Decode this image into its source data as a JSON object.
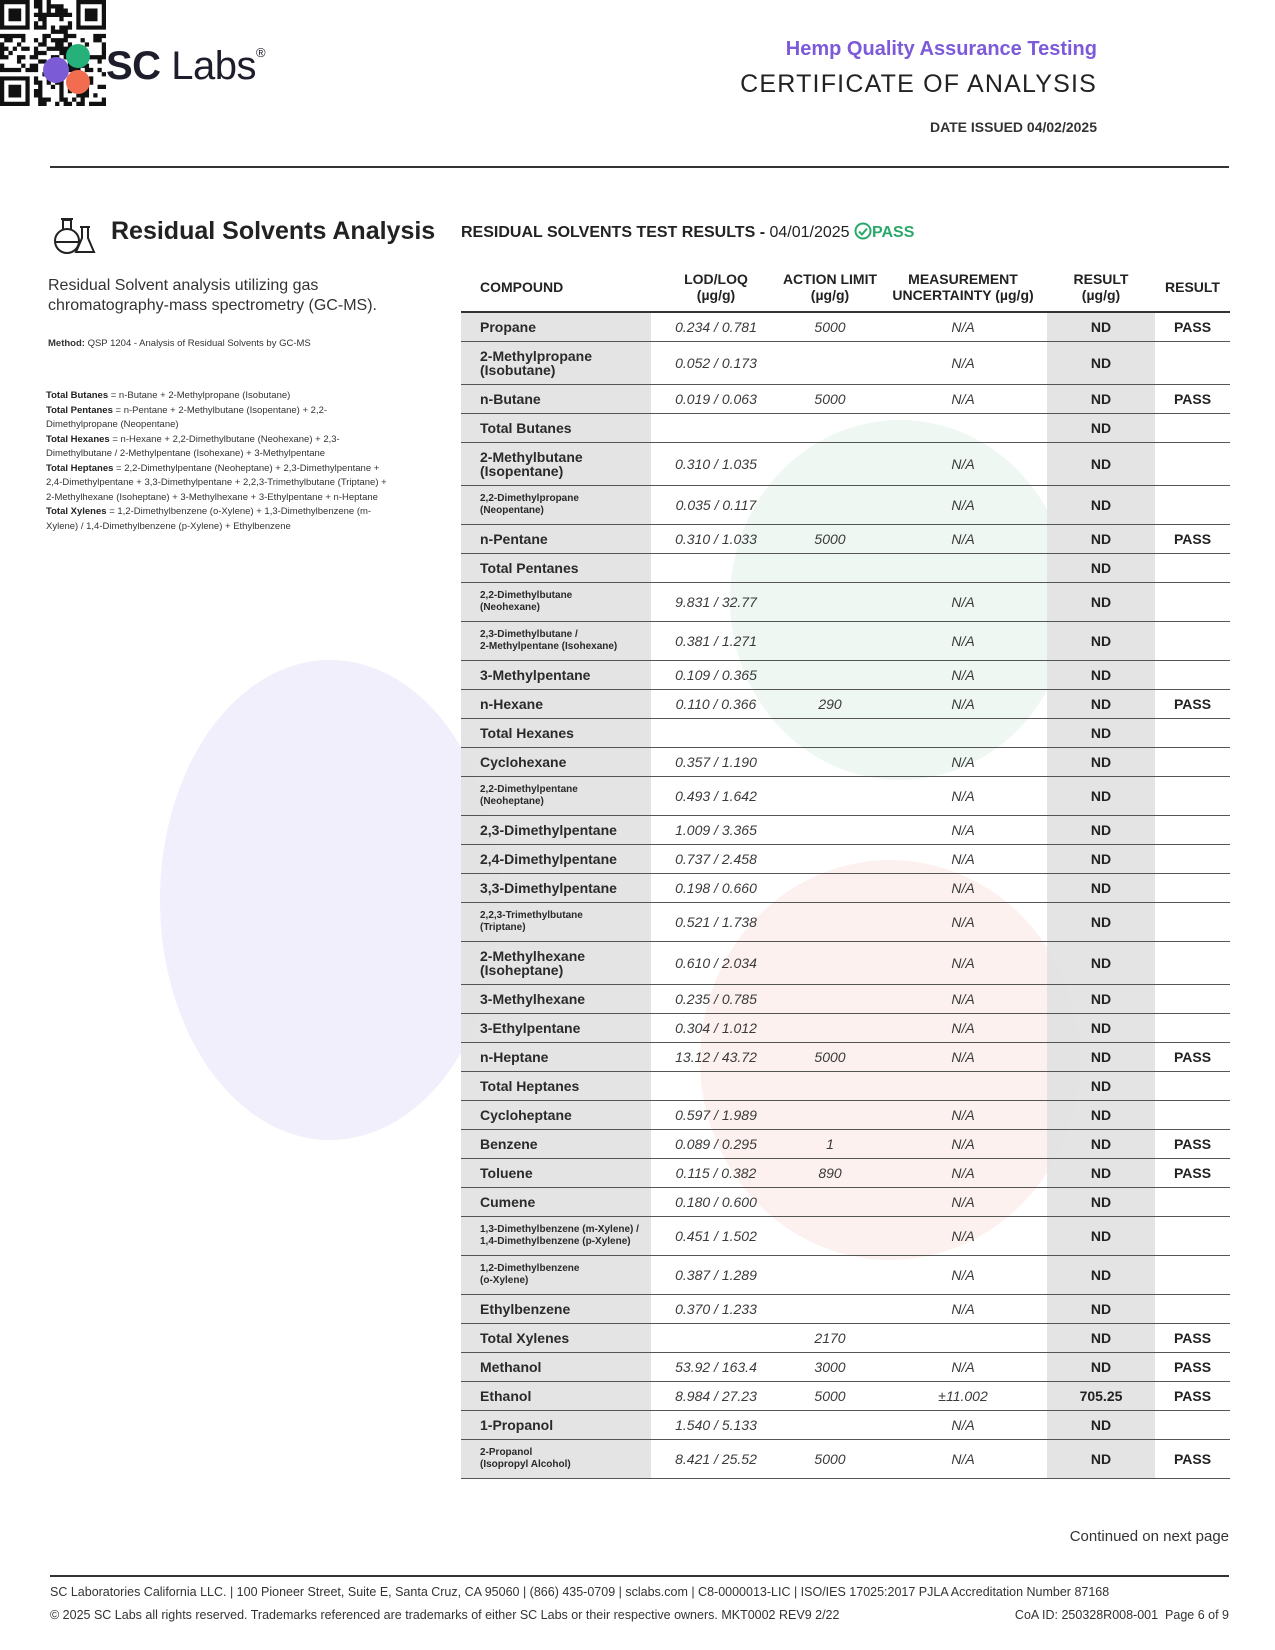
{
  "header": {
    "logo_bold": "SC",
    "logo_light": "Labs",
    "logo_mark": "®",
    "subtitle": "Hemp Quality Assurance Testing",
    "title": "CERTIFICATE OF ANALYSIS",
    "date_issued": "DATE ISSUED 04/02/2025"
  },
  "section": {
    "title": "Residual Solvents Analysis",
    "description": "Residual Solvent analysis utilizing gas chromatography-mass spectrometry (GC-MS).",
    "method_label": "Method:",
    "method": "QSP 1204 - Analysis of Residual Solvents by GC-MS",
    "notes": [
      {
        "label": "Total Butanes",
        "text": "= n-Butane + 2-Methylpropane (Isobutane)"
      },
      {
        "label": "Total Pentanes",
        "text": "= n-Pentane + 2-Methylbutane (Isopentane) + 2,2-Dimethylpropane (Neopentane)"
      },
      {
        "label": "Total Hexanes",
        "text": "= n-Hexane + 2,2-Dimethylbutane (Neohexane) + 2,3-Dimethylbutane / 2-Methylpentane (Isohexane) + 3-Methylpentane"
      },
      {
        "label": "Total Heptanes",
        "text": "= 2,2-Dimethylpentane (Neoheptane) + 2,3-Dimethylpentane + 2,4-Dimethylpentane + 3,3-Dimethylpentane + 2,2,3-Trimethylbutane (Triptane) + 2-Methylhexane (Isoheptane) + 3-Methylhexane + 3-Ethylpentane + n-Heptane"
      },
      {
        "label": "Total Xylenes",
        "text": "= 1,2-Dimethylbenzene (o-Xylene) + 1,3-Dimethylbenzene (m-Xylene) / 1,4-Dimethylbenzene (p-Xylene) + Ethylbenzene"
      }
    ]
  },
  "table": {
    "heading": "RESIDUAL SOLVENTS TEST RESULTS -",
    "date": "04/01/2025",
    "status": "PASS",
    "columns": [
      "COMPOUND",
      "LOD/LOQ\n(µg/g)",
      "ACTION LIMIT\n(µg/g)",
      "MEASUREMENT\nUNCERTAINTY (µg/g)",
      "RESULT\n(µg/g)",
      "RESULT"
    ],
    "rows": [
      [
        "Propane",
        "0.234 / 0.781",
        "5000",
        "N/A",
        "ND",
        "PASS"
      ],
      [
        "2-Methylpropane\n(Isobutane)",
        "0.052 / 0.173",
        null,
        "N/A",
        "ND",
        null
      ],
      [
        "n-Butane",
        "0.019 / 0.063",
        "5000",
        "N/A",
        "ND",
        "PASS"
      ],
      [
        "Total Butanes",
        null,
        null,
        null,
        "ND",
        null
      ],
      [
        "2-Methylbutane\n(Isopentane)",
        "0.310 / 1.035",
        null,
        "N/A",
        "ND",
        null
      ],
      [
        "2,2-Dimethylpropane\n(Neopentane)",
        "0.035 / 0.117",
        null,
        "N/A",
        "ND",
        null
      ],
      [
        "n-Pentane",
        "0.310 / 1.033",
        "5000",
        "N/A",
        "ND",
        "PASS"
      ],
      [
        "Total Pentanes",
        null,
        null,
        null,
        "ND",
        null
      ],
      [
        "2,2-Dimethylbutane\n(Neohexane)",
        "9.831 / 32.77",
        null,
        "N/A",
        "ND",
        null
      ],
      [
        "2,3-Dimethylbutane /\n2-Methylpentane (Isohexane)",
        "0.381 / 1.271",
        null,
        "N/A",
        "ND",
        null
      ],
      [
        "3-Methylpentane",
        "0.109 / 0.365",
        null,
        "N/A",
        "ND",
        null
      ],
      [
        "n-Hexane",
        "0.110 / 0.366",
        "290",
        "N/A",
        "ND",
        "PASS"
      ],
      [
        "Total Hexanes",
        null,
        null,
        null,
        "ND",
        null
      ],
      [
        "Cyclohexane",
        "0.357 / 1.190",
        null,
        "N/A",
        "ND",
        null
      ],
      [
        "2,2-Dimethylpentane\n(Neoheptane)",
        "0.493 / 1.642",
        null,
        "N/A",
        "ND",
        null
      ],
      [
        "2,3-Dimethylpentane",
        "1.009 / 3.365",
        null,
        "N/A",
        "ND",
        null
      ],
      [
        "2,4-Dimethylpentane",
        "0.737 / 2.458",
        null,
        "N/A",
        "ND",
        null
      ],
      [
        "3,3-Dimethylpentane",
        "0.198 / 0.660",
        null,
        "N/A",
        "ND",
        null
      ],
      [
        "2,2,3-Trimethylbutane\n(Triptane)",
        "0.521 / 1.738",
        null,
        "N/A",
        "ND",
        null
      ],
      [
        "2-Methylhexane\n(Isoheptane)",
        "0.610 / 2.034",
        null,
        "N/A",
        "ND",
        null
      ],
      [
        "3-Methylhexane",
        "0.235 / 0.785",
        null,
        "N/A",
        "ND",
        null
      ],
      [
        "3-Ethylpentane",
        "0.304 / 1.012",
        null,
        "N/A",
        "ND",
        null
      ],
      [
        "n-Heptane",
        "13.12 / 43.72",
        "5000",
        "N/A",
        "ND",
        "PASS"
      ],
      [
        "Total Heptanes",
        null,
        null,
        null,
        "ND",
        null
      ],
      [
        "Cycloheptane",
        "0.597 / 1.989",
        null,
        "N/A",
        "ND",
        null
      ],
      [
        "Benzene",
        "0.089 / 0.295",
        "1",
        "N/A",
        "ND",
        "PASS"
      ],
      [
        "Toluene",
        "0.115 / 0.382",
        "890",
        "N/A",
        "ND",
        "PASS"
      ],
      [
        "Cumene",
        "0.180 / 0.600",
        null,
        "N/A",
        "ND",
        null
      ],
      [
        "1,3-Dimethylbenzene (m-Xylene) /\n1,4-Dimethylbenzene (p-Xylene)",
        "0.451 / 1.502",
        null,
        "N/A",
        "ND",
        null
      ],
      [
        "1,2-Dimethylbenzene\n(o-Xylene)",
        "0.387 / 1.289",
        null,
        "N/A",
        "ND",
        null
      ],
      [
        "Ethylbenzene",
        "0.370 / 1.233",
        null,
        "N/A",
        "ND",
        null
      ],
      [
        "Total Xylenes",
        null,
        "2170",
        null,
        "ND",
        "PASS"
      ],
      [
        "Methanol",
        "53.92 / 163.4",
        "3000",
        "N/A",
        "ND",
        "PASS"
      ],
      [
        "Ethanol",
        "8.984 / 27.23",
        "5000",
        "±11.002",
        "705.25",
        "PASS"
      ],
      [
        "1-Propanol",
        "1.540 / 5.133",
        null,
        "N/A",
        "ND",
        null
      ],
      [
        "2-Propanol\n(Isopropyl Alcohol)",
        "8.421 / 25.52",
        "5000",
        "N/A",
        "ND",
        "PASS"
      ]
    ]
  },
  "continued": "Continued on next page",
  "footer": {
    "address": "SC Laboratories California LLC. | 100 Pioneer Street, Suite E, Santa Cruz, CA 95060 | (866) 435-0709 | sclabs.com | C8-0000013-LIC | ISO/IES 17025:2017 PJLA Accreditation Number 87168",
    "copyright": "© 2025 SC Labs all rights reserved. Trademarks referenced are trademarks of either SC Labs or their respective owners. MKT0002 REV9 2/22",
    "coa_id": "CoA ID: 250328R008-001",
    "page": "Page 6 of 9"
  }
}
